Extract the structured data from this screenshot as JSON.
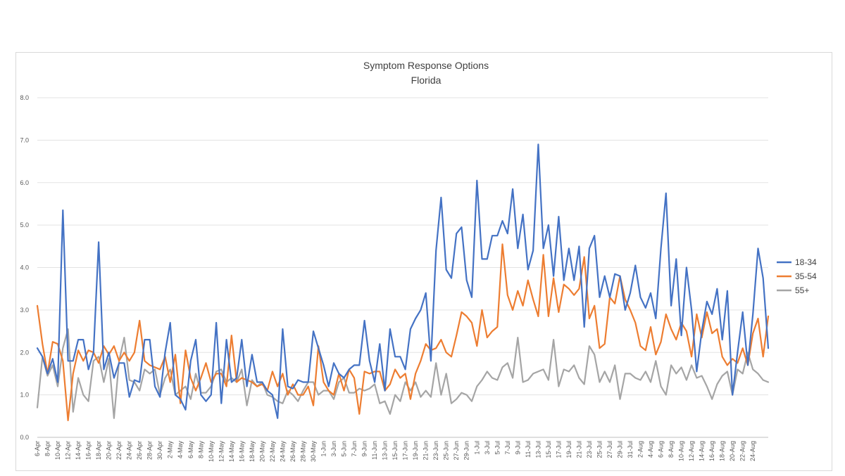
{
  "chart_data": {
    "type": "line",
    "title": "Symptom Response Options",
    "subtitle": "Florida",
    "xlabel": "",
    "ylabel": "",
    "ylim": [
      0,
      8
    ],
    "y_ticks": [
      "0.0",
      "1.0",
      "2.0",
      "3.0",
      "4.0",
      "5.0",
      "6.0",
      "7.0",
      "8.0"
    ],
    "grid": true,
    "legend_position": "right",
    "x_tick_labels": [
      "6-Apr",
      "8-Apr",
      "10-Apr",
      "12-Apr",
      "14-Apr",
      "16-Apr",
      "18-Apr",
      "20-Apr",
      "22-Apr",
      "24-Apr",
      "26-Apr",
      "28-Apr",
      "30-Apr",
      "2-May",
      "4-May",
      "6-May",
      "8-May",
      "10-May",
      "12-May",
      "14-May",
      "16-May",
      "18-May",
      "20-May",
      "22-May",
      "24-May",
      "26-May",
      "28-May",
      "30-May",
      "1-Jun",
      "3-Jun",
      "5-Jun",
      "7-Jun",
      "9-Jun",
      "11-Jun",
      "13-Jun",
      "15-Jun",
      "17-Jun",
      "19-Jun",
      "21-Jun",
      "23-Jun",
      "25-Jun",
      "27-Jun",
      "29-Jun",
      "1-Jul",
      "3-Jul",
      "5-Jul",
      "7-Jul",
      "9-Jul",
      "11-Jul",
      "13-Jul",
      "15-Jul",
      "17-Jul",
      "19-Jul",
      "21-Jul",
      "23-Jul",
      "25-Jul",
      "27-Jul",
      "29-Jul",
      "31-Jul",
      "2-Aug",
      "4-Aug",
      "6-Aug",
      "8-Aug",
      "10-Aug",
      "12-Aug",
      "14-Aug",
      "16-Aug",
      "18-Aug",
      "20-Aug",
      "22-Aug",
      "24-Aug"
    ],
    "series": [
      {
        "name": "18-34",
        "color": "#4472c4",
        "values": [
          2.1,
          1.9,
          1.5,
          1.85,
          1.3,
          5.35,
          1.8,
          1.8,
          2.3,
          2.3,
          1.6,
          2.0,
          4.6,
          1.6,
          2.0,
          1.4,
          1.75,
          1.75,
          0.95,
          1.35,
          1.3,
          2.3,
          2.3,
          1.2,
          0.95,
          2.0,
          2.7,
          1.0,
          0.9,
          0.65,
          1.8,
          2.3,
          1.0,
          0.85,
          1.0,
          2.7,
          0.8,
          2.3,
          1.3,
          1.4,
          2.3,
          1.2,
          1.95,
          1.3,
          1.3,
          1.1,
          1.0,
          0.45,
          2.55,
          1.2,
          1.15,
          1.35,
          1.3,
          1.3,
          2.5,
          2.1,
          1.7,
          1.2,
          1.75,
          1.5,
          1.4,
          1.6,
          1.7,
          1.7,
          2.75,
          1.8,
          1.3,
          2.2,
          1.1,
          2.55,
          1.9,
          1.9,
          1.6,
          2.55,
          2.8,
          3.0,
          3.4,
          1.8,
          4.4,
          5.65,
          3.95,
          3.75,
          4.8,
          4.95,
          3.7,
          3.3,
          6.05,
          4.2,
          4.2,
          4.75,
          4.75,
          5.1,
          4.8,
          5.85,
          4.45,
          5.25,
          3.95,
          4.4,
          6.9,
          4.45,
          5.0,
          3.8,
          5.2,
          3.7,
          4.45,
          3.7,
          4.5,
          2.6,
          4.45,
          4.75,
          3.3,
          3.8,
          3.3,
          3.85,
          3.8,
          3.0,
          3.4,
          4.05,
          3.3,
          3.05,
          3.4,
          2.8,
          4.45,
          5.75,
          3.1,
          4.2,
          2.4,
          4.0,
          3.0,
          1.55,
          2.5,
          3.2,
          2.9,
          3.5,
          2.3,
          3.45,
          1.0,
          2.0,
          2.95,
          1.7,
          2.9,
          4.45,
          3.75,
          2.1
        ]
      },
      {
        "name": "35-54",
        "color": "#ed7d31",
        "values": [
          3.1,
          2.2,
          1.5,
          2.25,
          2.2,
          1.8,
          0.4,
          1.5,
          2.05,
          1.8,
          2.05,
          2.0,
          1.75,
          2.15,
          1.95,
          2.15,
          1.8,
          2.0,
          1.8,
          2.0,
          2.75,
          1.8,
          1.7,
          1.65,
          1.6,
          1.9,
          1.3,
          1.95,
          0.8,
          2.05,
          1.4,
          1.1,
          1.4,
          1.75,
          1.3,
          1.5,
          1.5,
          1.2,
          2.4,
          1.3,
          1.4,
          1.35,
          1.3,
          1.2,
          1.25,
          1.1,
          1.55,
          1.2,
          1.5,
          1.0,
          1.25,
          1.0,
          1.0,
          1.2,
          0.75,
          2.15,
          1.3,
          1.1,
          1.0,
          1.5,
          1.1,
          1.6,
          1.4,
          0.55,
          1.55,
          1.5,
          1.55,
          1.55,
          1.1,
          1.25,
          1.6,
          1.4,
          1.5,
          0.9,
          1.5,
          1.8,
          2.2,
          2.05,
          2.1,
          2.3,
          2.0,
          1.9,
          2.4,
          2.95,
          2.85,
          2.7,
          2.15,
          3.0,
          2.35,
          2.5,
          2.6,
          4.55,
          3.35,
          3.0,
          3.45,
          3.1,
          3.7,
          3.25,
          2.85,
          4.3,
          2.85,
          3.75,
          2.95,
          3.6,
          3.5,
          3.35,
          3.5,
          4.25,
          2.8,
          3.1,
          2.1,
          2.2,
          3.3,
          3.15,
          3.8,
          3.25,
          3.0,
          2.7,
          2.15,
          2.05,
          2.6,
          1.95,
          2.25,
          2.9,
          2.55,
          2.3,
          2.7,
          2.5,
          1.9,
          2.9,
          2.35,
          2.95,
          2.45,
          2.55,
          1.9,
          1.7,
          1.85,
          1.75,
          2.1,
          1.7,
          2.45,
          2.8,
          1.9,
          2.85
        ]
      },
      {
        "name": "55+",
        "color": "#a5a5a5",
        "values": [
          0.7,
          1.9,
          1.45,
          1.7,
          1.2,
          2.1,
          2.55,
          0.6,
          1.4,
          1.0,
          0.85,
          1.8,
          1.9,
          1.3,
          1.85,
          0.45,
          1.8,
          2.35,
          1.35,
          1.3,
          1.1,
          1.6,
          1.5,
          1.6,
          1.0,
          1.4,
          1.6,
          1.0,
          1.1,
          1.2,
          0.9,
          1.5,
          1.05,
          1.05,
          1.2,
          1.55,
          1.6,
          1.3,
          1.4,
          1.3,
          1.6,
          0.75,
          1.35,
          1.2,
          1.3,
          1.0,
          0.95,
          0.85,
          0.8,
          1.1,
          1.0,
          0.85,
          1.1,
          1.3,
          1.3,
          1.0,
          1.1,
          1.1,
          0.9,
          1.3,
          1.4,
          1.05,
          1.05,
          1.15,
          1.1,
          1.15,
          1.25,
          0.8,
          0.85,
          0.55,
          1.0,
          0.85,
          1.3,
          1.1,
          1.3,
          0.95,
          1.1,
          0.95,
          1.75,
          1.0,
          1.5,
          0.8,
          0.9,
          1.05,
          1.0,
          0.85,
          1.2,
          1.35,
          1.55,
          1.4,
          1.35,
          1.65,
          1.75,
          1.4,
          2.35,
          1.3,
          1.35,
          1.5,
          1.55,
          1.6,
          1.35,
          2.3,
          1.2,
          1.6,
          1.55,
          1.7,
          1.4,
          1.25,
          2.15,
          1.95,
          1.3,
          1.55,
          1.3,
          1.7,
          0.9,
          1.5,
          1.5,
          1.4,
          1.35,
          1.55,
          1.3,
          1.8,
          1.2,
          1.0,
          1.7,
          1.5,
          1.65,
          1.35,
          1.7,
          1.4,
          1.45,
          1.2,
          0.9,
          1.25,
          1.45,
          1.55,
          1.0,
          1.6,
          1.5,
          2.0,
          1.6,
          1.5,
          1.35,
          1.3
        ]
      }
    ]
  }
}
